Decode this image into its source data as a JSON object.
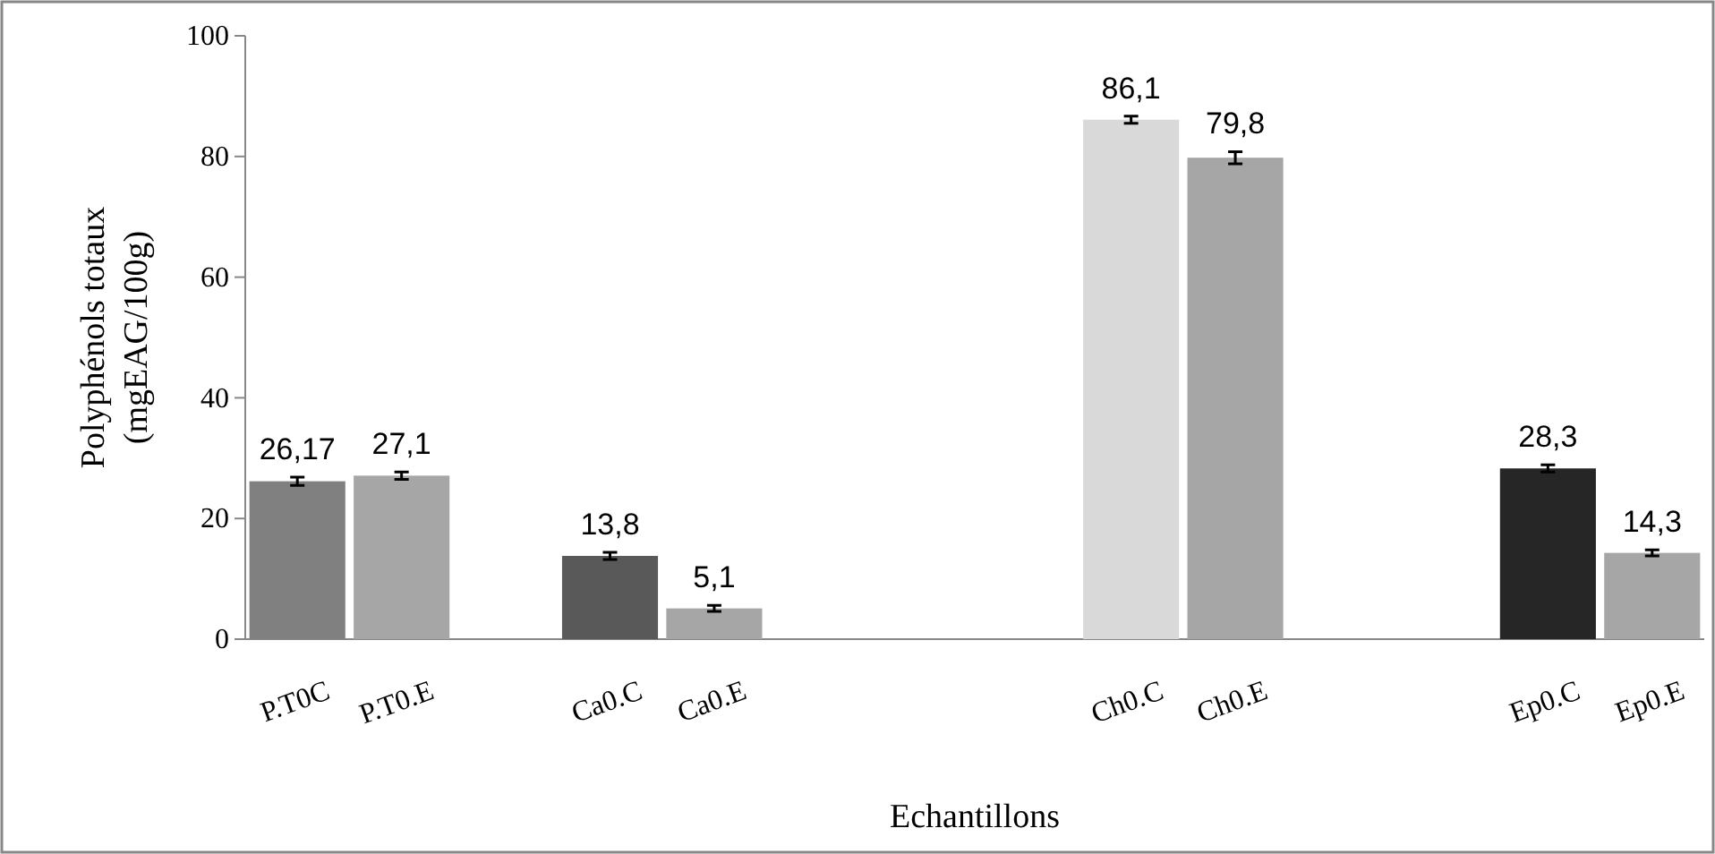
{
  "chart_data": {
    "type": "bar",
    "categories": [
      "P.T0C",
      "P.T0.E",
      null,
      "Ca0.C",
      "Ca0.E",
      null,
      null,
      null,
      "Ch0.C",
      "Ch0.E",
      null,
      null,
      "Ep0.C",
      "Ep0.E"
    ],
    "values": [
      26.17,
      27.1,
      null,
      13.8,
      5.1,
      null,
      null,
      null,
      86.1,
      79.8,
      null,
      null,
      28.3,
      14.3
    ],
    "value_labels": [
      "26,17",
      "27,1",
      null,
      "13,8",
      "5,1",
      null,
      null,
      null,
      "86,1",
      "79,8",
      null,
      null,
      "28,3",
      "14,3"
    ],
    "errors": [
      0.7,
      0.6,
      null,
      0.6,
      0.5,
      null,
      null,
      null,
      0.6,
      1,
      null,
      null,
      0.6,
      0.5
    ],
    "colors": [
      "#808080",
      "#a6a6a6",
      null,
      "#595959",
      "#a6a6a6",
      null,
      null,
      null,
      "#d9d9d9",
      "#a6a6a6",
      null,
      null,
      "#262626",
      "#a6a6a6"
    ],
    "xlabel": "Echantillons",
    "ylabel": "Polyphénols totaux\n(mgEAG/100g)",
    "ylim": [
      0,
      100
    ],
    "yticks": [
      0,
      20,
      40,
      60,
      80,
      100
    ],
    "grid": false
  }
}
